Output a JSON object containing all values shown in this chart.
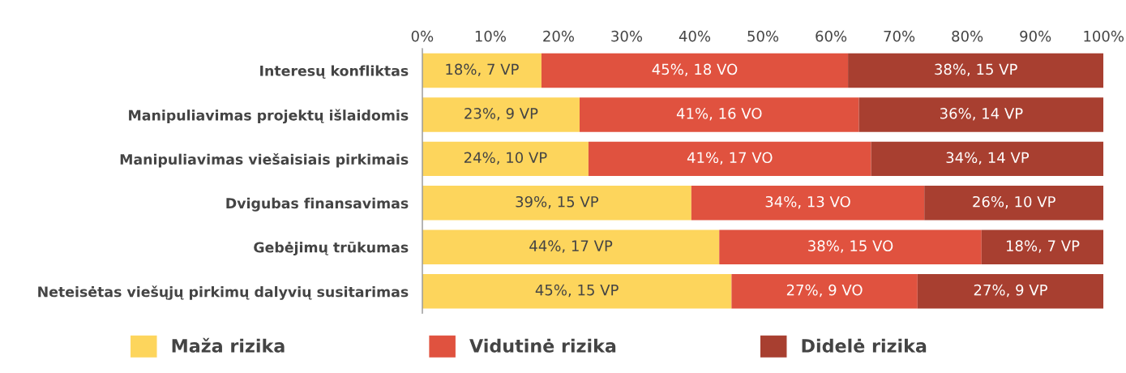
{
  "chart_data": {
    "type": "bar",
    "orientation": "horizontal",
    "stacked": true,
    "categories": [
      "Interesų konfliktas",
      "Manipuliavimas projektų išlaidomis",
      "Manipuliavimas viešaisiais pirkimais",
      "Dvigubas finansavimas",
      "Gebėjimų trūkumas",
      "Neteisėtas viešųjų pirkimų dalyvių susitarimas"
    ],
    "series": [
      {
        "name": "Maža rizika",
        "color": "#fdd55c",
        "values": [
          17.5,
          23.1,
          24.4,
          39.5,
          43.6,
          45.4
        ],
        "value_labels": [
          "18%, 7 VP",
          "23%, 9 VP",
          "24%, 10 VP",
          "39%, 15 VP",
          "44%, 17 VP",
          "45%, 15 VP"
        ]
      },
      {
        "name": "Vidutinė rizika",
        "color": "#e0523f",
        "values": [
          45.0,
          41.0,
          41.5,
          34.2,
          38.5,
          27.3
        ],
        "value_labels": [
          "45%, 18 VO",
          "41%, 16 VO",
          "41%, 17 VO",
          "34%, 13 VO",
          "38%, 15 VO",
          "27%, 9 VO"
        ]
      },
      {
        "name": "Didelė rizika",
        "color": "#a83f30",
        "values": [
          37.5,
          35.9,
          34.1,
          26.3,
          17.9,
          27.3
        ],
        "value_labels": [
          "38%, 15 VP",
          "36%, 14 VP",
          "34%, 14 VP",
          "26%, 10 VP",
          "18%, 7 VP",
          "27%, 9 VP"
        ]
      }
    ],
    "xlim": [
      0,
      100
    ],
    "xticks": [
      {
        "value": 0,
        "label": "0%"
      },
      {
        "value": 10,
        "label": "10%"
      },
      {
        "value": 20,
        "label": "20%"
      },
      {
        "value": 30,
        "label": "30%"
      },
      {
        "value": 40,
        "label": "40%"
      },
      {
        "value": 50,
        "label": "50%"
      },
      {
        "value": 60,
        "label": "60%"
      },
      {
        "value": 70,
        "label": "70%"
      },
      {
        "value": 80,
        "label": "80%"
      },
      {
        "value": 90,
        "label": "90%"
      },
      {
        "value": 100,
        "label": "100%"
      }
    ],
    "grid": false,
    "legend": "bottom"
  }
}
